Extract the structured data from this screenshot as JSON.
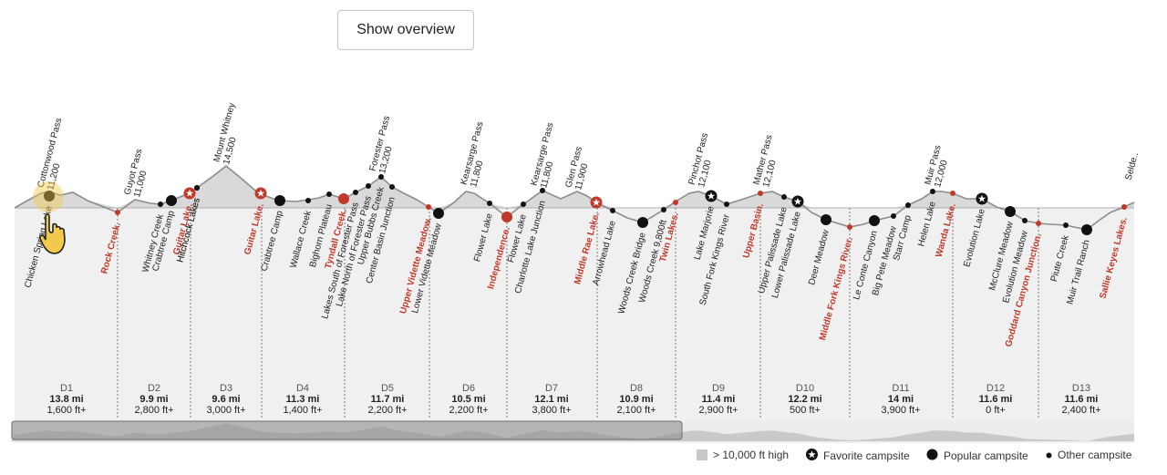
{
  "header": {
    "overview_button": "Show overview"
  },
  "chart_data": {
    "type": "elevation-profile",
    "title": "",
    "colors": {
      "highlight": "#c0392b",
      "terrain": "#d9d9d9",
      "panel": "#f0f0f0",
      "text": "#222222"
    },
    "days": [
      {
        "day": "D1",
        "mi": "13.8 mi",
        "gain": "1,600 ft+"
      },
      {
        "day": "D2",
        "mi": "9.9 mi",
        "gain": "2,800 ft+"
      },
      {
        "day": "D3",
        "mi": "9.6 mi",
        "gain": "3,000 ft+"
      },
      {
        "day": "D4",
        "mi": "11.3 mi",
        "gain": "1,400 ft+"
      },
      {
        "day": "D5",
        "mi": "11.7 mi",
        "gain": "2,200 ft+"
      },
      {
        "day": "D6",
        "mi": "10.5 mi",
        "gain": "2,200 ft+"
      },
      {
        "day": "D7",
        "mi": "12.1 mi",
        "gain": "3,800 ft+"
      },
      {
        "day": "D8",
        "mi": "10.9 mi",
        "gain": "2,100 ft+"
      },
      {
        "day": "D9",
        "mi": "11.4 mi",
        "gain": "2,900 ft+"
      },
      {
        "day": "D10",
        "mi": "12.2 mi",
        "gain": "500 ft+"
      },
      {
        "day": "D11",
        "mi": "14 mi",
        "gain": "3,900 ft+"
      },
      {
        "day": "D12",
        "mi": "11.6 mi",
        "gain": "0 ft+"
      },
      {
        "day": "D13",
        "mi": "11.6 mi",
        "gain": "2,400 ft+"
      }
    ],
    "passes": [
      {
        "name": "Cottonwood Pass",
        "elev": "11,200"
      },
      {
        "name": "Guyot Pass",
        "elev": "11,000"
      },
      {
        "name": "Mount Whitney",
        "elev": "14,500"
      },
      {
        "name": "Forester Pass",
        "elev": "13,200"
      },
      {
        "name": "Kearsarge Pass",
        "elev": "11,800"
      },
      {
        "name": "Kearsarge Pass",
        "elev": "11,800"
      },
      {
        "name": "Glen Pass",
        "elev": "11,900"
      },
      {
        "name": "Pinchot Pass",
        "elev": "12,100"
      },
      {
        "name": "Mather Pass",
        "elev": "12,100"
      },
      {
        "name": "Muir Pass",
        "elev": "12,000"
      },
      {
        "name": "Selde..",
        "elev": ""
      }
    ],
    "camps": [
      {
        "name": "Chicken Spring Lake",
        "kind": "popular",
        "highlight": false
      },
      {
        "name": "Rock Creek",
        "kind": "other",
        "highlight": true
      },
      {
        "name": "Whitney Creek",
        "kind": "other",
        "highlight": false
      },
      {
        "name": "Crabtree Camp",
        "kind": "popular",
        "highlight": false
      },
      {
        "name": "Guitar Lake",
        "kind": "favorite",
        "highlight": true
      },
      {
        "name": "Hitchcock Lakes",
        "kind": "other",
        "highlight": false
      },
      {
        "name": "Hitchcock Lakes",
        "kind": "other",
        "highlight": false
      },
      {
        "name": "Guitar Lake",
        "kind": "favorite",
        "highlight": true
      },
      {
        "name": "Crabtree Camp",
        "kind": "popular",
        "highlight": false
      },
      {
        "name": "Wallace Creek",
        "kind": "other",
        "highlight": false
      },
      {
        "name": "Bighorn Plateau",
        "kind": "other",
        "highlight": false
      },
      {
        "name": "Tyndall Creek",
        "kind": "popular",
        "highlight": true
      },
      {
        "name": "Lakes South of Forester Pass",
        "kind": "other",
        "highlight": false
      },
      {
        "name": "Lake North of Forester Pass",
        "kind": "other",
        "highlight": false
      },
      {
        "name": "Upper Bubbs Creek",
        "kind": "other",
        "highlight": false
      },
      {
        "name": "Center Basin Junction",
        "kind": "other",
        "highlight": false
      },
      {
        "name": "Upper Vidette Meadow",
        "kind": "other",
        "highlight": true
      },
      {
        "name": "Lower Vidette Meadow",
        "kind": "popular",
        "highlight": false
      },
      {
        "name": "Flower Lake",
        "kind": "other",
        "highlight": false
      },
      {
        "name": "Independence",
        "kind": "popular",
        "highlight": true
      },
      {
        "name": "Flower Lake",
        "kind": "other",
        "highlight": false
      },
      {
        "name": "Charlotte Lake Junction",
        "kind": "other",
        "highlight": false
      },
      {
        "name": "Middle Rae Lake",
        "kind": "favorite",
        "highlight": true
      },
      {
        "name": "Arrowhead Lake",
        "kind": "other",
        "highlight": false
      },
      {
        "name": "Woods Creek Bridge",
        "kind": "popular",
        "highlight": false
      },
      {
        "name": "Woods Creek 9,800ft",
        "kind": "other",
        "highlight": false
      },
      {
        "name": "Twin Lakes",
        "kind": "other",
        "highlight": true
      },
      {
        "name": "Lake Marjorie",
        "kind": "favorite",
        "highlight": false
      },
      {
        "name": "South Fork Kings River",
        "kind": "other",
        "highlight": false
      },
      {
        "name": "Upper Basin",
        "kind": "other",
        "highlight": true
      },
      {
        "name": "Upper Palissade Lake",
        "kind": "other",
        "highlight": false
      },
      {
        "name": "Lower Palissade Lake",
        "kind": "favorite",
        "highlight": false
      },
      {
        "name": "Deer Meadow",
        "kind": "popular",
        "highlight": false
      },
      {
        "name": "Middle Fork Kings River",
        "kind": "other",
        "highlight": true
      },
      {
        "name": "Le Conte Canyon",
        "kind": "popular",
        "highlight": false
      },
      {
        "name": "Big Pete Meadow",
        "kind": "other",
        "highlight": false
      },
      {
        "name": "Starr Camp",
        "kind": "other",
        "highlight": false
      },
      {
        "name": "Helen Lake",
        "kind": "other",
        "highlight": false
      },
      {
        "name": "Wanda Lake",
        "kind": "other",
        "highlight": true
      },
      {
        "name": "Evolution Lake",
        "kind": "favorite",
        "highlight": false
      },
      {
        "name": "McClure Meadow",
        "kind": "popular",
        "highlight": false
      },
      {
        "name": "Evolution Meadow",
        "kind": "other",
        "highlight": false
      },
      {
        "name": "Goddard Canyon Junction",
        "kind": "other",
        "highlight": true
      },
      {
        "name": "Piute Creek",
        "kind": "other",
        "highlight": false
      },
      {
        "name": "Muir Trail Ranch",
        "kind": "popular",
        "highlight": false
      },
      {
        "name": "Sallie Keyes Lakes",
        "kind": "other",
        "highlight": true
      }
    ],
    "legend": {
      "high": "> 10,000 ft high",
      "favorite": "Favorite campsite",
      "popular": "Popular campsite",
      "other": "Other campsite"
    }
  }
}
